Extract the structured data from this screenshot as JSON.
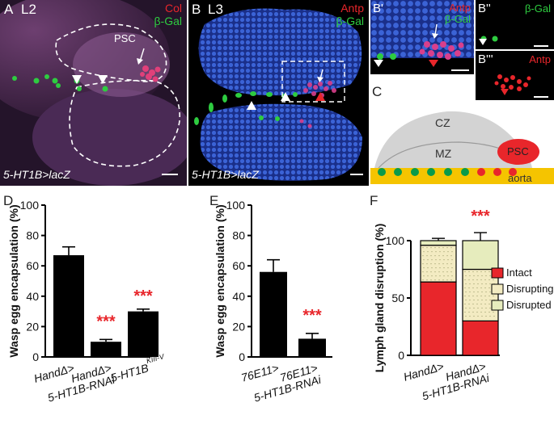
{
  "figure": {
    "panels_micro": {
      "A": {
        "letter": "A",
        "stage": "L2",
        "channel1": "Col",
        "channel2": "β-Gal",
        "arrow_label": "PSC",
        "genotype": "5-HT1B>lacZ"
      },
      "B": {
        "letter": "B",
        "stage": "L3",
        "channel1": "Antp",
        "channel2": "β-Gal",
        "genotype": "5-HT1B>lacZ"
      },
      "B1": {
        "letter": "B'",
        "channel1": "Antp",
        "channel2": "β-Gal"
      },
      "B2": {
        "letter": "B''",
        "channel2": "β-Gal"
      },
      "B3": {
        "letter": "B'''",
        "channel1": "Antp"
      }
    },
    "schematic_C": {
      "letter": "C",
      "cz": "CZ",
      "mz": "MZ",
      "psc": "PSC",
      "aorta": "aorta"
    },
    "colors": {
      "green": "#2ecc40",
      "red": "#e8262b",
      "blue": "#2f55c8",
      "pink": "#e0407a",
      "sig": "#e8262b",
      "yellow": "#f5c400"
    }
  },
  "chart_data": [
    {
      "panel": "D",
      "type": "bar",
      "ylabel": "Wasp egg encapsulation (%)",
      "ylim": [
        0,
        100
      ],
      "yticks": [
        "0",
        "20",
        "40",
        "60",
        "80",
        "100"
      ],
      "categories": [
        "HandΔ>",
        "HandΔ> 5-HT1B-RNAi",
        "5-HT1B^KIII-V"
      ],
      "tick_labels": [
        [
          "HandΔ>"
        ],
        [
          "HandΔ>",
          "5-HT1B-RNAi"
        ],
        [
          "5-HT1B",
          "KIII-V"
        ]
      ],
      "values": [
        67,
        10,
        30
      ],
      "errors": [
        5.5,
        1.5,
        1.5
      ],
      "significance": [
        "",
        "***",
        "***"
      ]
    },
    {
      "panel": "E",
      "type": "bar",
      "ylabel": "Wasp egg encapsulation (%)",
      "ylim": [
        0,
        100
      ],
      "yticks": [
        "0",
        "20",
        "40",
        "60",
        "80",
        "100"
      ],
      "categories": [
        "76E11>",
        "76E11> 5-HT1B-RNAi"
      ],
      "tick_labels": [
        [
          "76E11>"
        ],
        [
          "76E11>",
          "5-HT1B-RNAi"
        ]
      ],
      "values": [
        56,
        12
      ],
      "errors": [
        8,
        3.5
      ],
      "significance": [
        "",
        "***"
      ]
    },
    {
      "panel": "F",
      "type": "bar",
      "stacked": true,
      "ylabel": "Lymph gland disruption (%)",
      "ylim": [
        0,
        100
      ],
      "yticks": [
        "0",
        "50",
        "100"
      ],
      "categories": [
        "HandΔ>",
        "HandΔ> 5-HT1B-RNAi"
      ],
      "tick_labels": [
        [
          "HandΔ>"
        ],
        [
          "HandΔ>",
          "5-HT1B-RNAi"
        ]
      ],
      "series": [
        {
          "name": "Intact",
          "values": [
            64,
            30
          ],
          "errors": [
            7,
            4
          ]
        },
        {
          "name": "Disrupting",
          "values": [
            32,
            45
          ],
          "errors": [
            2.5,
            3
          ]
        },
        {
          "name": "Disrupted",
          "values": [
            4,
            25
          ],
          "errors": [
            2,
            7
          ]
        }
      ],
      "significance": [
        "",
        "***"
      ],
      "legend_position": "right"
    }
  ]
}
